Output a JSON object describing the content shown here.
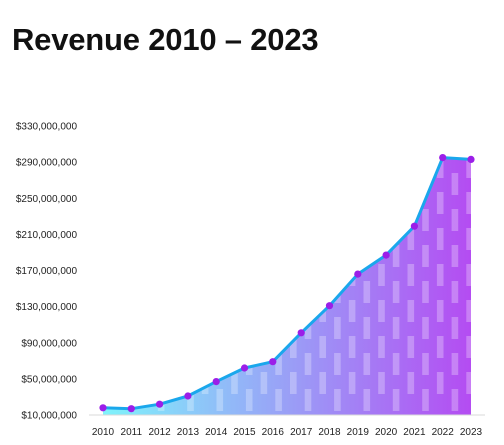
{
  "chart_data": {
    "type": "area",
    "title": "Revenue 2010 – 2023",
    "xlabel": "",
    "ylabel": "",
    "categories": [
      "2010",
      "2011",
      "2012",
      "2013",
      "2014",
      "2015",
      "2016",
      "2017",
      "2018",
      "2019",
      "2020",
      "2021",
      "2022",
      "2023"
    ],
    "values": [
      18000000,
      17000000,
      22000000,
      31000000,
      47000000,
      62000000,
      69000000,
      101000000,
      131000000,
      166000000,
      187000000,
      219000000,
      295000000,
      293000000
    ],
    "ylim": [
      10000000,
      330000000
    ],
    "yticks": [
      10000000,
      50000000,
      90000000,
      130000000,
      170000000,
      210000000,
      250000000,
      290000000,
      330000000
    ],
    "ytick_labels": [
      "$10,000,000",
      "$50,000,000",
      "$90,000,000",
      "$130,000,000",
      "$170,000,000",
      "$210,000,000",
      "$250,000,000",
      "$290,000,000",
      "$330,000,000"
    ],
    "grid": false,
    "legend": "none",
    "colors": {
      "line": "#1aa7ec",
      "marker": "#9b1ee8",
      "fill_left": "#7ff3fb",
      "fill_right": "#b44cf2",
      "stripe": "#ffffff",
      "baseline": "#d9d9d9"
    }
  }
}
